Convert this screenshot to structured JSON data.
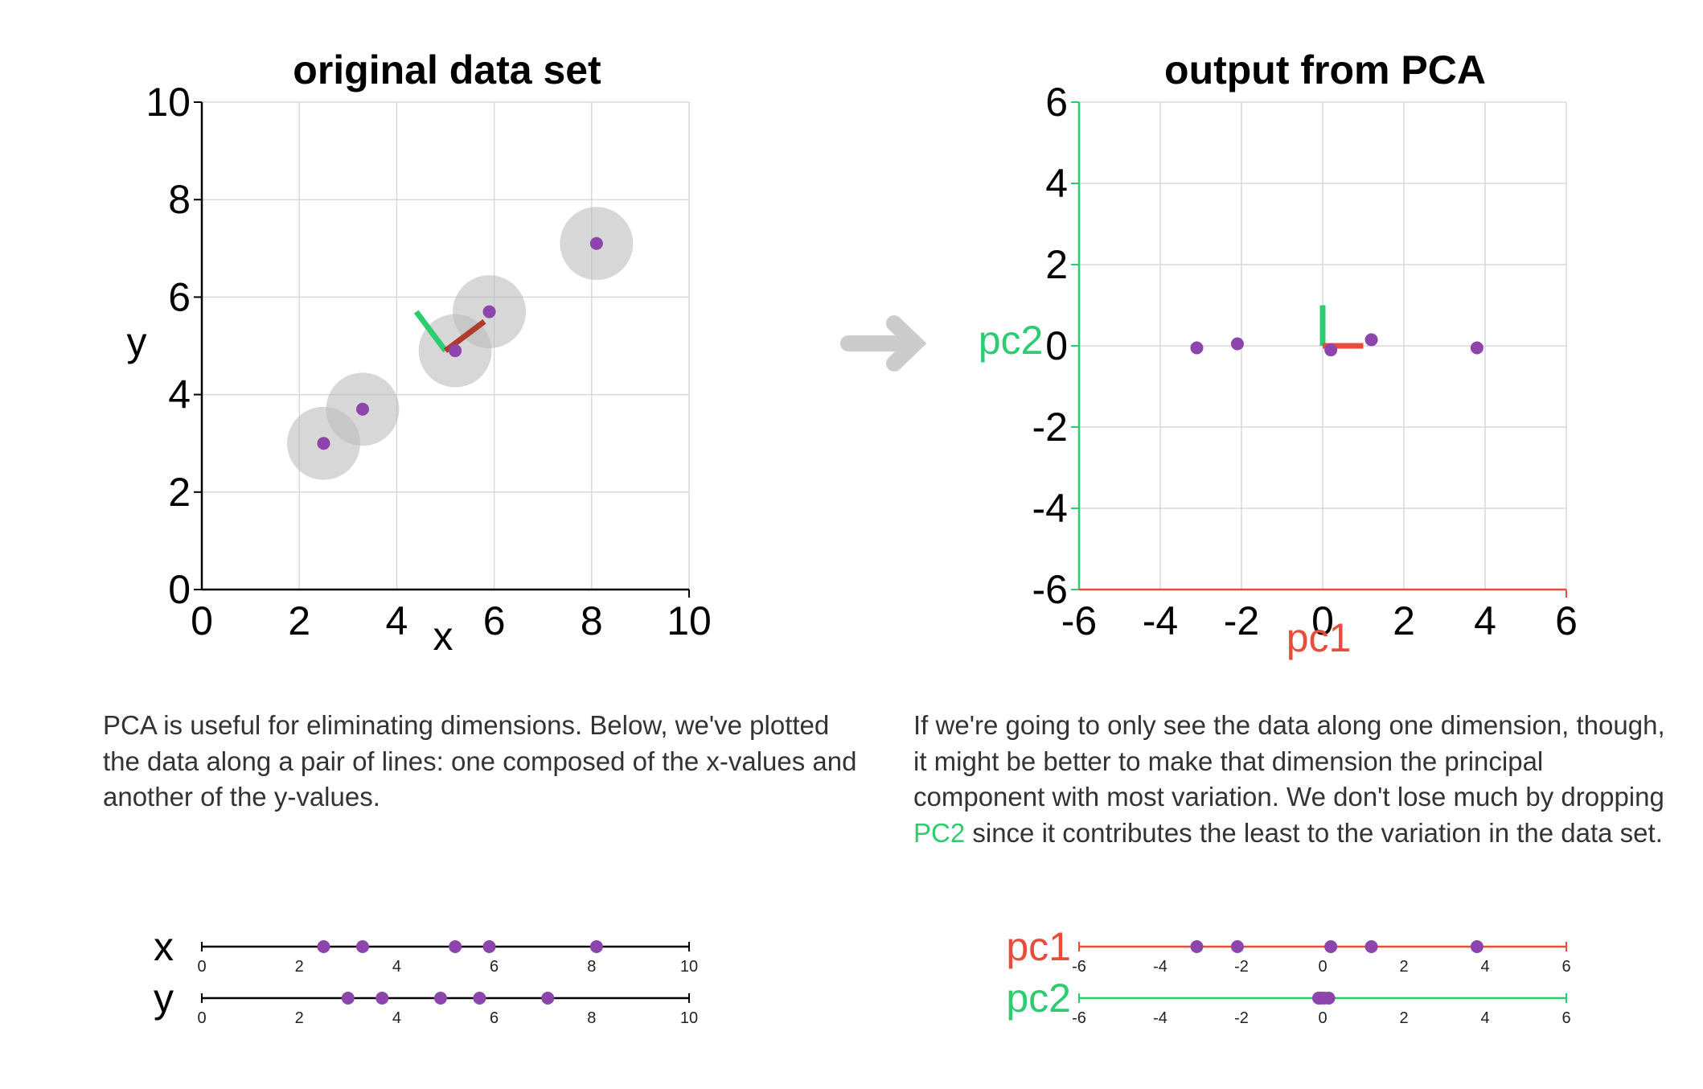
{
  "colors": {
    "point": "#8e44ad",
    "pc1": "#e74c3c",
    "pc2": "#2ecc71",
    "pc1_vector": "#b03a2e",
    "arrow": "#cccccc",
    "circle": "#bdbdbd"
  },
  "text": {
    "left_paragraph": "PCA is useful for eliminating dimensions. Below, we've plotted the data along a pair of lines: one composed of the x-values and another of the y-values.",
    "right_paragraph_before": "If we're going to only see the data along one dimension, though, it might be better to make that dimension the principal component with most variation. We don't lose much by dropping ",
    "right_paragraph_highlight": "PC2",
    "right_paragraph_after": " since it contributes the least to the variation in the data set."
  },
  "chart_data": [
    {
      "id": "original",
      "type": "scatter",
      "title": "original data set",
      "xlabel": "x",
      "ylabel": "y",
      "xlim": [
        0,
        10
      ],
      "ylim": [
        0,
        10
      ],
      "xticks": [
        "0",
        "2",
        "4",
        "6",
        "8",
        "10"
      ],
      "yticks": [
        "0",
        "2",
        "4",
        "6",
        "8",
        "10"
      ],
      "grid": true,
      "points": [
        {
          "x": 2.5,
          "y": 3.0
        },
        {
          "x": 3.3,
          "y": 3.7
        },
        {
          "x": 5.2,
          "y": 4.9
        },
        {
          "x": 5.9,
          "y": 5.7
        },
        {
          "x": 8.1,
          "y": 7.1
        }
      ],
      "circle_radius": 0.75,
      "mean": {
        "x": 5.0,
        "y": 4.9
      },
      "pc1_vector": {
        "x": 5.8,
        "y": 5.5
      },
      "pc2_vector": {
        "x": 4.4,
        "y": 5.7
      }
    },
    {
      "id": "pca",
      "type": "scatter",
      "title": "output from PCA",
      "xlabel": "pc1",
      "ylabel": "pc2",
      "xlim": [
        -6,
        6
      ],
      "ylim": [
        -6,
        6
      ],
      "xticks": [
        "-6",
        "-4",
        "-2",
        "0",
        "2",
        "4",
        "6"
      ],
      "yticks": [
        "-6",
        "-4",
        "-2",
        "0",
        "2",
        "4",
        "6"
      ],
      "grid": true,
      "points": [
        {
          "x": -3.1,
          "y": -0.05
        },
        {
          "x": -2.1,
          "y": 0.05
        },
        {
          "x": 0.2,
          "y": -0.1
        },
        {
          "x": 1.2,
          "y": 0.15
        },
        {
          "x": 3.8,
          "y": -0.05
        }
      ],
      "pc1_vector": {
        "x": 1.0,
        "y": 0
      },
      "pc2_vector": {
        "x": 0,
        "y": 1.0
      }
    },
    {
      "id": "x-line",
      "type": "scatter",
      "label": "x",
      "xlim": [
        0,
        10
      ],
      "ticks": [
        "0",
        "2",
        "4",
        "6",
        "8",
        "10"
      ],
      "values": [
        2.5,
        3.3,
        5.2,
        5.9,
        8.1
      ]
    },
    {
      "id": "y-line",
      "type": "scatter",
      "label": "y",
      "xlim": [
        0,
        10
      ],
      "ticks": [
        "0",
        "2",
        "4",
        "6",
        "8",
        "10"
      ],
      "values": [
        3.0,
        3.7,
        4.9,
        5.7,
        7.1
      ]
    },
    {
      "id": "pc1-line",
      "type": "scatter",
      "label": "pc1",
      "xlim": [
        -6,
        6
      ],
      "ticks": [
        "-6",
        "-4",
        "-2",
        "0",
        "2",
        "4",
        "6"
      ],
      "values": [
        -3.1,
        -2.1,
        0.2,
        1.2,
        3.8
      ]
    },
    {
      "id": "pc2-line",
      "type": "scatter",
      "label": "pc2",
      "xlim": [
        -6,
        6
      ],
      "ticks": [
        "-6",
        "-4",
        "-2",
        "0",
        "2",
        "4",
        "6"
      ],
      "values": [
        -0.05,
        0.05,
        -0.1,
        0.15,
        -0.05
      ]
    }
  ]
}
